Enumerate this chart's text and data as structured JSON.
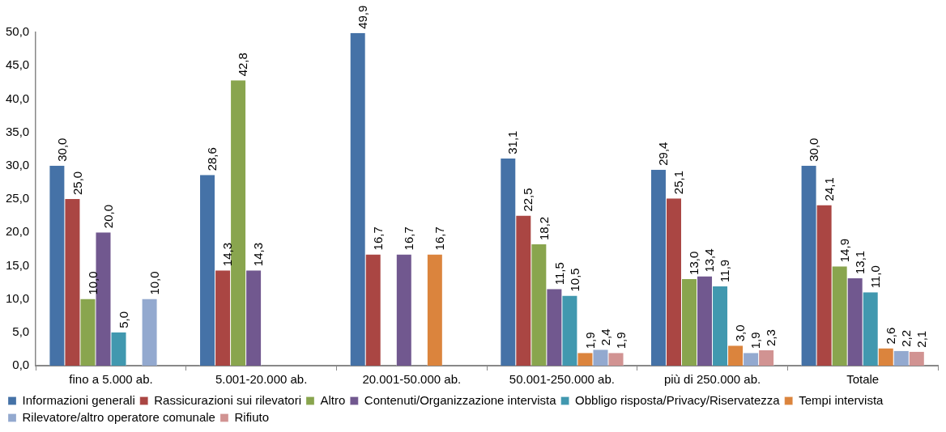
{
  "chart_data": {
    "type": "bar",
    "categories": [
      "fino a 5.000 ab.",
      "5.001-20.000 ab.",
      "20.001-50.000 ab.",
      "50.001-250.000 ab.",
      "più di 250.000 ab.",
      "Totale"
    ],
    "ylim": [
      0,
      50
    ],
    "yticks": [
      {
        "value": 0,
        "label": "0,0"
      },
      {
        "value": 5,
        "label": "5,0"
      },
      {
        "value": 10,
        "label": "10,0"
      },
      {
        "value": 15,
        "label": "15,0"
      },
      {
        "value": 20,
        "label": "20,0"
      },
      {
        "value": 25,
        "label": "25,0"
      },
      {
        "value": 30,
        "label": "30,0"
      },
      {
        "value": 35,
        "label": "35,0"
      },
      {
        "value": 40,
        "label": "40,0"
      },
      {
        "value": 45,
        "label": "45,0"
      },
      {
        "value": 50,
        "label": "50,0"
      }
    ],
    "legend": "bottom",
    "series": [
      {
        "name": "Informazioni generali",
        "color": "#4572a7",
        "values": [
          30.0,
          28.6,
          49.9,
          31.1,
          29.4,
          30.0
        ],
        "value_labels": [
          "30,0",
          "28,6",
          "49,9",
          "31,1",
          "29,4",
          "30,0"
        ]
      },
      {
        "name": "Rassicurazioni sui rilevatori",
        "color": "#aa4643",
        "values": [
          25.0,
          14.3,
          16.7,
          22.5,
          25.1,
          24.1
        ],
        "value_labels": [
          "25,0",
          "14,3",
          "16,7",
          "22,5",
          "25,1",
          "24,1"
        ]
      },
      {
        "name": "Altro",
        "color": "#89a54e",
        "values": [
          10.0,
          42.8,
          null,
          18.2,
          13.0,
          14.9
        ],
        "value_labels": [
          "10,0",
          "42,8",
          null,
          "18,2",
          "13,0",
          "14,9"
        ]
      },
      {
        "name": "Contenuti/Organizzazione intervista",
        "color": "#71588f",
        "values": [
          20.0,
          14.3,
          16.7,
          11.5,
          13.4,
          13.1
        ],
        "value_labels": [
          "20,0",
          "14,3",
          "16,7",
          "11,5",
          "13,4",
          "13,1"
        ]
      },
      {
        "name": "Obbligo risposta/Privacy/Riservatezza",
        "color": "#4198af",
        "values": [
          5.0,
          null,
          null,
          10.5,
          11.9,
          11.0
        ],
        "value_labels": [
          "5,0",
          null,
          null,
          "10,5",
          "11,9",
          "11,0"
        ]
      },
      {
        "name": "Tempi intervista",
        "color": "#db843d",
        "values": [
          null,
          null,
          16.7,
          1.9,
          3.0,
          2.6
        ],
        "value_labels": [
          null,
          null,
          "16,7",
          "1,9",
          "3,0",
          "2,6"
        ]
      },
      {
        "name": "Rilevatore/altro operatore comunale",
        "color": "#93a9cf",
        "values": [
          10.0,
          null,
          null,
          2.4,
          1.9,
          2.2
        ],
        "value_labels": [
          "10,0",
          null,
          null,
          "2,4",
          "1,9",
          "2,2"
        ]
      },
      {
        "name": "Rifiuto",
        "color": "#d19392",
        "values": [
          null,
          null,
          null,
          1.9,
          2.3,
          2.1
        ],
        "value_labels": [
          null,
          null,
          null,
          "1,9",
          "2,3",
          "2,1"
        ]
      }
    ]
  }
}
